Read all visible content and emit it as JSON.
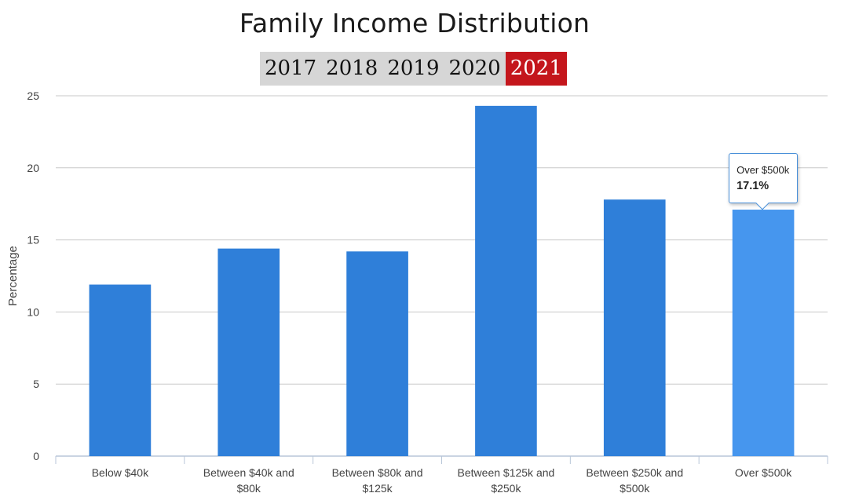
{
  "header": {
    "year_tabs": [
      "2017",
      "2018",
      "2019",
      "2020",
      "2021"
    ],
    "active_year": "2021"
  },
  "colors": {
    "bar": "#2f7fd9",
    "bar_highlight": "#4696ee",
    "active_tab": "#c4161c",
    "tab_background": "#d6d6d6",
    "gridline": "#c8c8c8"
  },
  "chart_data": {
    "type": "bar",
    "title": "Family Income Distribution",
    "xlabel": "",
    "ylabel": "Percentage",
    "ylim": [
      0,
      25
    ],
    "yticks": [
      0,
      5,
      10,
      15,
      20,
      25
    ],
    "grid": true,
    "categories": [
      "Below $40k",
      "Between $40k and $80k",
      "Between $80k and $125k",
      "Between $125k and $250k",
      "Between $250k and $500k",
      "Over $500k"
    ],
    "category_label_lines": [
      [
        "Below $40k"
      ],
      [
        "Between $40k and",
        "$80k"
      ],
      [
        "Between $80k and",
        "$125k"
      ],
      [
        "Between $125k and",
        "$250k"
      ],
      [
        "Between $250k and",
        "$500k"
      ],
      [
        "Over $500k"
      ]
    ],
    "values": [
      11.9,
      14.4,
      14.2,
      24.3,
      17.8,
      17.1
    ],
    "highlighted_category": "Over $500k",
    "tooltip": {
      "label": "Over $500k",
      "value": "17.1%"
    }
  }
}
